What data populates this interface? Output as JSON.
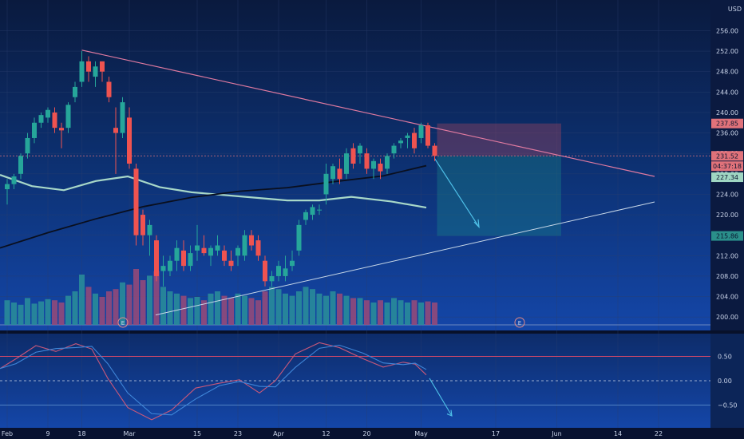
{
  "currency": "USD",
  "chart_data": {
    "type": "candlestick",
    "price_axis": {
      "ylim": [
        198,
        262
      ],
      "ticks": [
        200,
        204,
        208,
        212,
        216,
        220,
        224,
        228,
        232,
        236,
        240,
        244,
        248,
        252,
        256
      ]
    },
    "x_axis": {
      "ticks": [
        {
          "label": "Feb",
          "i": 0
        },
        {
          "label": "9",
          "i": 6
        },
        {
          "label": "18",
          "i": 11
        },
        {
          "label": "Mar",
          "i": 18
        },
        {
          "label": "15",
          "i": 28
        },
        {
          "label": "23",
          "i": 34
        },
        {
          "label": "Apr",
          "i": 40
        },
        {
          "label": "12",
          "i": 47
        },
        {
          "label": "20",
          "i": 53
        },
        {
          "label": "May",
          "i": 61
        },
        {
          "label": "17",
          "i": 72
        },
        {
          "label": "Jun",
          "i": 81
        },
        {
          "label": "14",
          "i": 90
        },
        {
          "label": "22",
          "i": 96
        }
      ]
    },
    "price_labels": [
      {
        "value": 237.85,
        "text": "237.85",
        "color": "#e0727a"
      },
      {
        "value": 231.52,
        "text": "231.52",
        "color": "#e0727a"
      },
      {
        "value": 229.5,
        "text": "04:37:18",
        "color": "#e0727a"
      },
      {
        "value": 227.34,
        "text": "227.34",
        "color": "#9fd6c2"
      },
      {
        "value": 215.86,
        "text": "215.86",
        "color": "#2a8f8a"
      }
    ],
    "candles": [
      {
        "o": 225,
        "h": 227,
        "l": 222,
        "c": 226
      },
      {
        "o": 226,
        "h": 228,
        "l": 225,
        "c": 227.5
      },
      {
        "o": 228,
        "h": 232,
        "l": 227,
        "c": 231.5
      },
      {
        "o": 232,
        "h": 236,
        "l": 231,
        "c": 235
      },
      {
        "o": 235,
        "h": 239,
        "l": 234,
        "c": 238
      },
      {
        "o": 238,
        "h": 240,
        "l": 237,
        "c": 239.5
      },
      {
        "o": 239,
        "h": 241,
        "l": 238,
        "c": 240.5
      },
      {
        "o": 240,
        "h": 241,
        "l": 236,
        "c": 237
      },
      {
        "o": 237,
        "h": 238,
        "l": 233,
        "c": 236.5
      },
      {
        "o": 237,
        "h": 242,
        "l": 236,
        "c": 241.5
      },
      {
        "o": 243,
        "h": 246,
        "l": 242,
        "c": 245
      },
      {
        "o": 246,
        "h": 252,
        "l": 245,
        "c": 250
      },
      {
        "o": 250,
        "h": 251,
        "l": 246,
        "c": 248
      },
      {
        "o": 247,
        "h": 250,
        "l": 245,
        "c": 249
      },
      {
        "o": 250,
        "h": 250,
        "l": 246,
        "c": 248
      },
      {
        "o": 246,
        "h": 247,
        "l": 242,
        "c": 243
      },
      {
        "o": 237,
        "h": 241,
        "l": 228,
        "c": 236
      },
      {
        "o": 236,
        "h": 243,
        "l": 235,
        "c": 242
      },
      {
        "o": 239,
        "h": 241,
        "l": 229,
        "c": 230
      },
      {
        "o": 229,
        "h": 230,
        "l": 214,
        "c": 216
      },
      {
        "o": 220,
        "h": 221,
        "l": 214,
        "c": 216
      },
      {
        "o": 216,
        "h": 219,
        "l": 212,
        "c": 218
      },
      {
        "o": 215,
        "h": 216,
        "l": 207,
        "c": 208
      },
      {
        "o": 209,
        "h": 212,
        "l": 206,
        "c": 210
      },
      {
        "o": 209,
        "h": 212,
        "l": 208,
        "c": 211
      },
      {
        "o": 211,
        "h": 215,
        "l": 209,
        "c": 213.5
      },
      {
        "o": 213,
        "h": 215,
        "l": 209,
        "c": 210
      },
      {
        "o": 210,
        "h": 214,
        "l": 209,
        "c": 212.5
      },
      {
        "o": 213,
        "h": 218,
        "l": 211,
        "c": 214
      },
      {
        "o": 213.5,
        "h": 216,
        "l": 212,
        "c": 212.5
      },
      {
        "o": 212,
        "h": 214,
        "l": 210,
        "c": 213.5
      },
      {
        "o": 213,
        "h": 216,
        "l": 212,
        "c": 214
      },
      {
        "o": 213,
        "h": 214,
        "l": 210,
        "c": 211
      },
      {
        "o": 211,
        "h": 213,
        "l": 209,
        "c": 210
      },
      {
        "o": 212,
        "h": 214,
        "l": 210,
        "c": 213.5
      },
      {
        "o": 212,
        "h": 217,
        "l": 211,
        "c": 216
      },
      {
        "o": 216,
        "h": 217,
        "l": 213,
        "c": 214
      },
      {
        "o": 215,
        "h": 216,
        "l": 211,
        "c": 212
      },
      {
        "o": 211,
        "h": 212,
        "l": 206,
        "c": 207
      },
      {
        "o": 207,
        "h": 209,
        "l": 206,
        "c": 208
      },
      {
        "o": 208,
        "h": 211,
        "l": 207,
        "c": 210
      },
      {
        "o": 208,
        "h": 212,
        "l": 207,
        "c": 209.5
      },
      {
        "o": 210,
        "h": 213,
        "l": 209,
        "c": 211
      },
      {
        "o": 213,
        "h": 219,
        "l": 212,
        "c": 218
      },
      {
        "o": 219,
        "h": 221,
        "l": 218,
        "c": 220.5
      },
      {
        "o": 220,
        "h": 222,
        "l": 219,
        "c": 221.5
      },
      {
        "o": 221,
        "h": 222,
        "l": 220,
        "c": 221
      },
      {
        "o": 224,
        "h": 230,
        "l": 222,
        "c": 228
      },
      {
        "o": 227,
        "h": 230,
        "l": 226,
        "c": 229.5
      },
      {
        "o": 229,
        "h": 231,
        "l": 226,
        "c": 227
      },
      {
        "o": 228,
        "h": 233,
        "l": 227,
        "c": 232
      },
      {
        "o": 233,
        "h": 234,
        "l": 229,
        "c": 230
      },
      {
        "o": 232,
        "h": 234,
        "l": 230,
        "c": 233.5
      },
      {
        "o": 232,
        "h": 233,
        "l": 228,
        "c": 229
      },
      {
        "o": 229,
        "h": 231,
        "l": 227,
        "c": 230.5
      },
      {
        "o": 230,
        "h": 231,
        "l": 227,
        "c": 228.5
      },
      {
        "o": 229,
        "h": 232,
        "l": 228,
        "c": 231.5
      },
      {
        "o": 232,
        "h": 234,
        "l": 231,
        "c": 233.5
      },
      {
        "o": 234,
        "h": 235,
        "l": 233,
        "c": 234.5
      },
      {
        "o": 235,
        "h": 236,
        "l": 233,
        "c": 235.5
      },
      {
        "o": 236,
        "h": 237,
        "l": 232,
        "c": 233
      },
      {
        "o": 235,
        "h": 238,
        "l": 234,
        "c": 237.5
      },
      {
        "o": 237.5,
        "h": 238,
        "l": 233,
        "c": 233.5
      },
      {
        "o": 233.5,
        "h": 234,
        "l": 230.5,
        "c": 231.52
      }
    ],
    "volume": [
      22,
      20,
      18,
      24,
      19,
      21,
      23,
      22,
      20,
      26,
      30,
      45,
      34,
      28,
      25,
      30,
      32,
      38,
      36,
      50,
      40,
      44,
      48,
      34,
      30,
      28,
      26,
      24,
      25,
      22,
      28,
      30,
      26,
      24,
      28,
      26,
      24,
      22,
      30,
      34,
      32,
      28,
      26,
      30,
      34,
      32,
      28,
      26,
      30,
      28,
      26,
      24,
      24,
      22,
      20,
      22,
      20,
      24,
      22,
      20,
      22,
      20,
      21,
      20
    ]
  },
  "oscillator": {
    "ticks": [
      0.5,
      0,
      -0.5
    ],
    "labels": [
      "0.50",
      "0.00",
      "−0.50"
    ],
    "ylim": [
      -0.9,
      0.9
    ]
  },
  "earnings_marker": "E"
}
